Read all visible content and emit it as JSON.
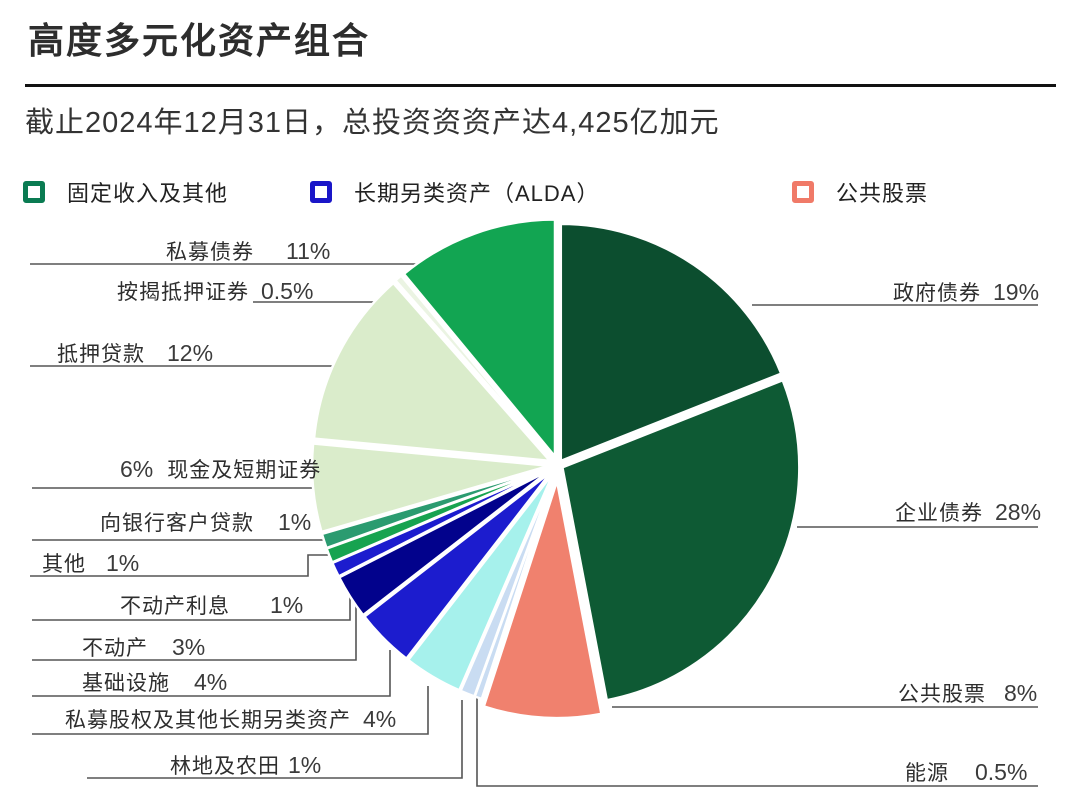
{
  "title": "高度多元化资产组合",
  "subtitle": "截止2024年12月31日，总投资资资产达4,425亿加元",
  "legend": [
    {
      "id": "fixed-income-and-other",
      "label": "固定收入及其他",
      "color": "#0a7b52"
    },
    {
      "id": "long-term-alternative-assets",
      "label": "长期另类资产（ALDA）",
      "color": "#1a16c8"
    },
    {
      "id": "public-equities",
      "label": "公共股票",
      "color": "#f07a68"
    }
  ],
  "chart_data": {
    "type": "pie",
    "unit": "%",
    "total_label": "总投资资产达4,425亿加元",
    "as_of": "2024年12月31日",
    "start_angle_deg": 0,
    "direction": "clockwise",
    "legend_position": "top",
    "slices": [
      {
        "id": "government-bonds",
        "label": "政府债券",
        "display": "19%",
        "value": 19,
        "color": "#0c4e2f",
        "group": "固定收入及其他"
      },
      {
        "id": "corporate-bonds",
        "label": "企业债券",
        "display": "28%",
        "value": 28,
        "color": "#0e5a34",
        "group": "固定收入及其他"
      },
      {
        "id": "public-equities",
        "label": "公共股票",
        "display": "8%",
        "value": 8,
        "color": "#f0816e",
        "group": "公共股票"
      },
      {
        "id": "energy",
        "label": "能源",
        "display": "0.5%",
        "value": 0.5,
        "color": "#c9dcf2",
        "group": "长期另类资产（ALDA）"
      },
      {
        "id": "timberland-and-farmland",
        "label": "林地及农田",
        "display": "1%",
        "value": 1,
        "color": "#c9dcf2",
        "group": "长期另类资产（ALDA）"
      },
      {
        "id": "private-equity-and-other-alda",
        "label": "私募股权及其他长期另类资产",
        "display": "4%",
        "value": 4,
        "color": "#a6f1ec",
        "group": "长期另类资产（ALDA）"
      },
      {
        "id": "infrastructure",
        "label": "基础设施",
        "display": "4%",
        "value": 4,
        "color": "#1c1cce",
        "group": "长期另类资产（ALDA）"
      },
      {
        "id": "real-estate",
        "label": "不动产",
        "display": "3%",
        "value": 3,
        "color": "#02028c",
        "group": "长期另类资产（ALDA）"
      },
      {
        "id": "real-estate-interest",
        "label": "不动产利息",
        "display": "1%",
        "value": 1,
        "color": "#1c1cce",
        "group": "长期另类资产（ALDA）"
      },
      {
        "id": "other",
        "label": "其他",
        "display": "1%",
        "value": 1,
        "color": "#17a350",
        "group": "固定收入及其他"
      },
      {
        "id": "loans-to-bank-clients",
        "label": "向银行客户贷款",
        "display": "1%",
        "value": 1,
        "color": "#2b9b70",
        "group": "固定收入及其他"
      },
      {
        "id": "cash-and-short-term-securities",
        "label": "现金及短期证券",
        "display": "6%",
        "value": 6,
        "color": "#daeccb",
        "group": "固定收入及其他"
      },
      {
        "id": "mortgages",
        "label": "抵押贷款",
        "display": "12%",
        "value": 12,
        "color": "#daeccb",
        "group": "固定收入及其他"
      },
      {
        "id": "mortgage-backed-securities",
        "label": "按揭抵押证券",
        "display": "0.5%",
        "value": 0.5,
        "color": "#ebf4e3",
        "group": "固定收入及其他"
      },
      {
        "id": "private-placement-debt",
        "label": "私募债券",
        "display": "11%",
        "value": 11,
        "color": "#12a552",
        "group": "固定收入及其他"
      }
    ]
  }
}
